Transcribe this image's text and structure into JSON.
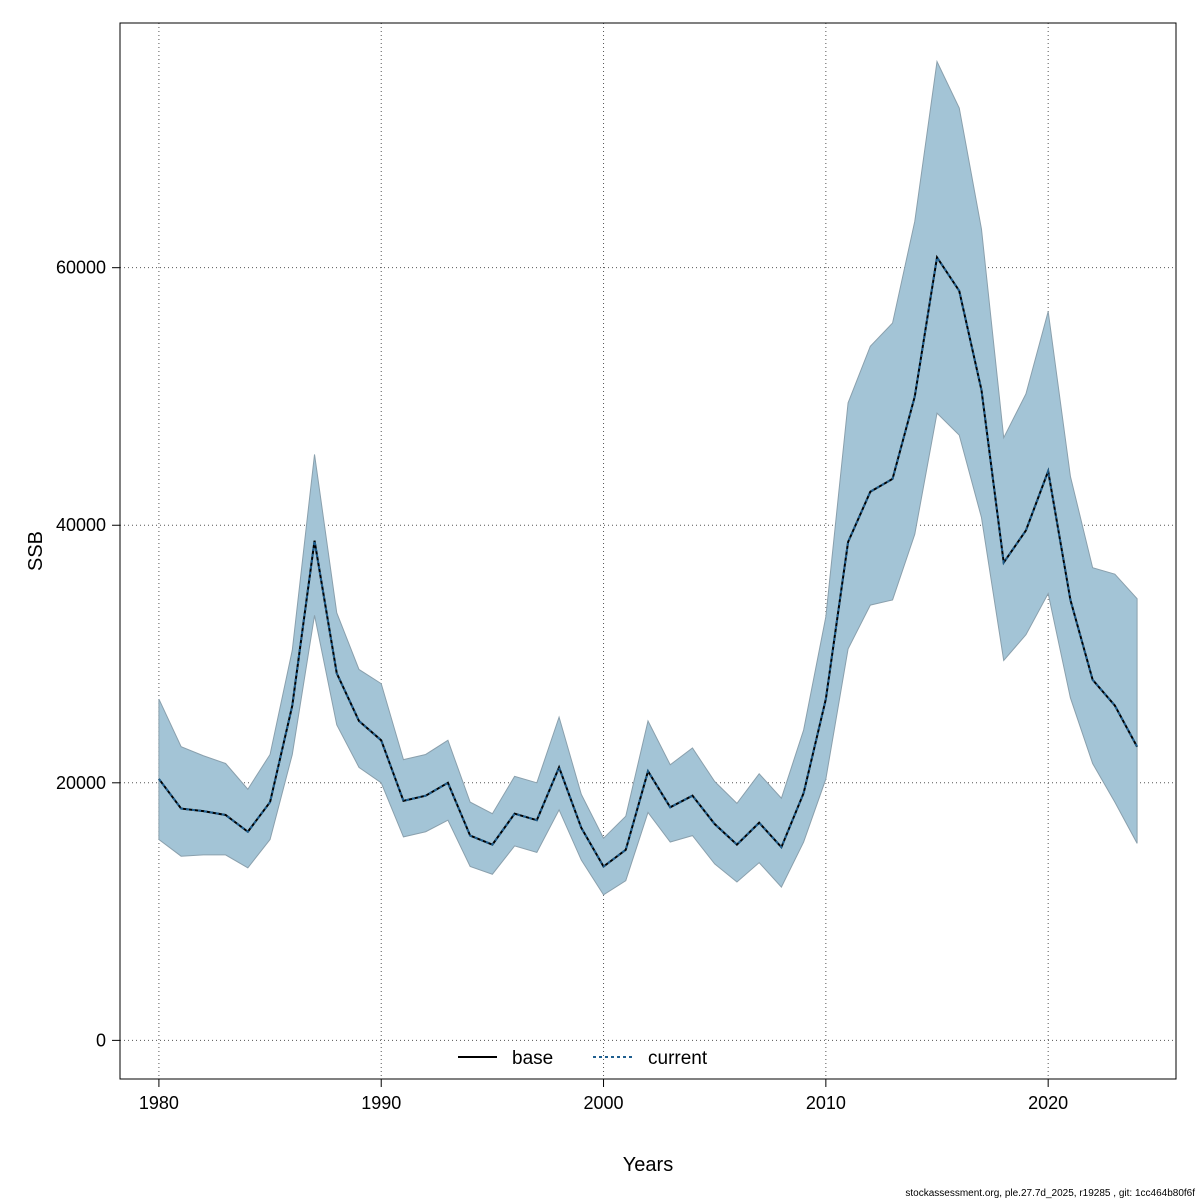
{
  "chart_data": {
    "type": "line",
    "xlabel": "Years",
    "ylabel": "SSB",
    "xlim": [
      1978.25,
      2025.75
    ],
    "ylim": [
      -3000,
      79000
    ],
    "x_ticks": [
      1980,
      1990,
      2000,
      2010,
      2020
    ],
    "y_ticks": [
      0,
      20000,
      40000,
      60000
    ],
    "grid": true,
    "legend_position": "bottom-center",
    "x": [
      1980,
      1981,
      1982,
      1983,
      1984,
      1985,
      1986,
      1987,
      1988,
      1989,
      1990,
      1991,
      1992,
      1993,
      1994,
      1995,
      1996,
      1997,
      1998,
      1999,
      2000,
      2001,
      2002,
      2003,
      2004,
      2005,
      2006,
      2007,
      2008,
      2009,
      2010,
      2011,
      2012,
      2013,
      2014,
      2015,
      2016,
      2017,
      2018,
      2019,
      2020,
      2021,
      2022,
      2023,
      2024
    ],
    "series": [
      {
        "name": "base",
        "color": "#000000",
        "values": [
          20300,
          18000,
          17800,
          17500,
          16200,
          18500,
          26000,
          38800,
          28500,
          24800,
          23300,
          18600,
          19000,
          20000,
          15900,
          15200,
          17600,
          17100,
          21200,
          16500,
          13500,
          14800,
          20900,
          18100,
          19000,
          16800,
          15200,
          16900,
          15000,
          19200,
          26500,
          38700,
          42600,
          43600,
          50000,
          60800,
          58200,
          50500,
          37100,
          39600,
          44200,
          34200,
          28000,
          26000,
          22800
        ]
      },
      {
        "name": "current",
        "color": "#1f5f8f",
        "values": [
          20300,
          18000,
          17800,
          17500,
          16200,
          18500,
          26000,
          38800,
          28500,
          24800,
          23300,
          18600,
          19000,
          20000,
          15900,
          15200,
          17600,
          17100,
          21200,
          16500,
          13500,
          14800,
          20900,
          18100,
          19000,
          16800,
          15200,
          16900,
          15000,
          19200,
          26500,
          38700,
          42600,
          43600,
          50000,
          60800,
          58200,
          50500,
          37100,
          39600,
          44200,
          34200,
          28000,
          26000,
          22800
        ]
      }
    ],
    "confidence_band": {
      "color": "#a3c4d6",
      "upper": [
        26500,
        22800,
        22100,
        21500,
        19500,
        22200,
        30300,
        45500,
        33200,
        28800,
        27700,
        21800,
        22200,
        23300,
        18500,
        17600,
        20500,
        20000,
        25100,
        19100,
        15700,
        17400,
        24800,
        21400,
        22700,
        20100,
        18400,
        20700,
        18800,
        24100,
        32900,
        49500,
        53900,
        55700,
        63600,
        76000,
        72400,
        63000,
        46800,
        50200,
        56600,
        43800,
        36700,
        36200,
        34300
      ],
      "lower": [
        15600,
        14300,
        14400,
        14400,
        13400,
        15600,
        22200,
        33000,
        24500,
        21200,
        20000,
        15800,
        16200,
        17100,
        13500,
        12900,
        15100,
        14600,
        17900,
        14000,
        11300,
        12400,
        17700,
        15400,
        15900,
        13700,
        12300,
        13800,
        11900,
        15400,
        20300,
        30400,
        33800,
        34200,
        39300,
        48700,
        47000,
        40600,
        29500,
        31500,
        34700,
        26600,
        21500,
        18500,
        15300
      ]
    }
  },
  "footer": {
    "text": "stockassessment.org, ple.27.7d_2025, r19285 , git: 1cc464b80f6f"
  }
}
